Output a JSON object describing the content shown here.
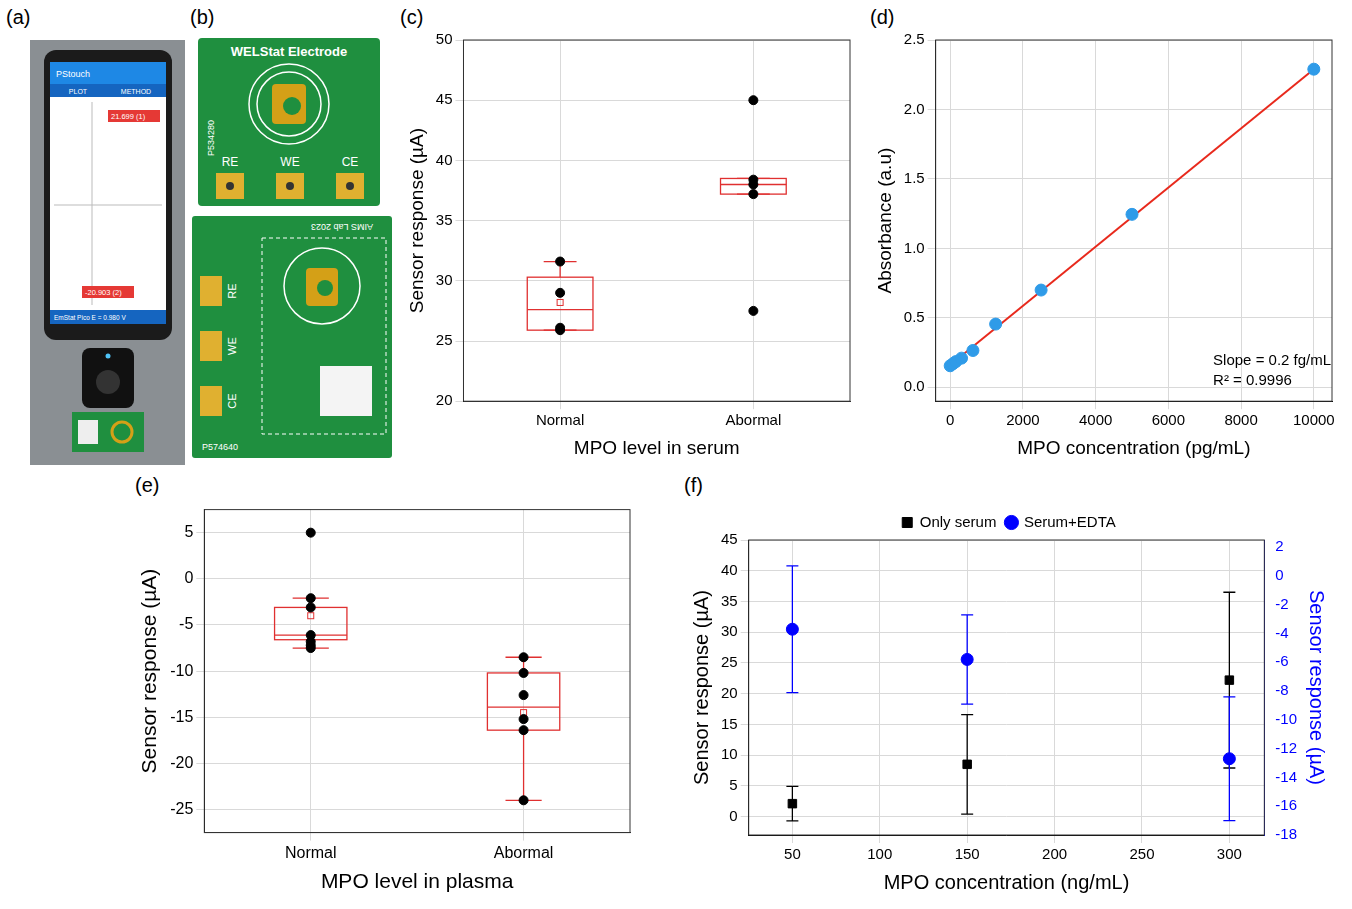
{
  "photos": [
    {
      "panel": "(a)",
      "app": "PStouch",
      "tabs": [
        "PLOT",
        "METHOD"
      ],
      "peak_labels": [
        "21.699 (1)",
        "-20.903 (2)"
      ],
      "status": "EmStat Pico   E = 0.980 V"
    },
    {
      "panel": "(b)",
      "electrodes": [
        {
          "title": "WELStat Electrode",
          "code": "P534280",
          "pins": [
            "RE",
            "WE",
            "CE"
          ]
        },
        {
          "title": "AIMS Lab 2023",
          "code": "P574640",
          "pins": [
            "RE",
            "WE",
            "CE"
          ]
        }
      ]
    }
  ],
  "chart_data": [
    {
      "panel": "(c)",
      "type": "box",
      "categories": [
        "Normal",
        "Abormal"
      ],
      "x_label": "MPO level in serum",
      "y_label": "Sensor response (µA)",
      "ylim": [
        20,
        50
      ],
      "yticks": [
        20,
        25,
        30,
        35,
        40,
        45,
        50
      ],
      "grid": true,
      "color": "#e03030",
      "point_color": "#000000",
      "points": [
        [
          31.6,
          29.0,
          26.1,
          25.9
        ],
        [
          45.0,
          38.4,
          38.0,
          37.2,
          27.5
        ]
      ],
      "boxes": [
        {
          "q1": 25.9,
          "median": 27.6,
          "q3": 30.3,
          "whisker_low": 25.9,
          "whisker_high": 31.6,
          "mean": 28.2
        },
        {
          "q1": 37.2,
          "median": 38.0,
          "q3": 38.5,
          "whisker_low": 37.2,
          "whisker_high": 38.5,
          "mean": 37.2
        }
      ]
    },
    {
      "panel": "(d)",
      "type": "scatter",
      "x_label": "MPO concentration (pg/mL)",
      "y_label": "Absorbance (a.u)",
      "xlim": [
        -400,
        10500
      ],
      "xticks": [
        0,
        2000,
        4000,
        6000,
        8000,
        10000
      ],
      "ylim": [
        -0.1,
        2.5
      ],
      "yticks": [
        {
          "value": 0,
          "label": "0.0"
        },
        {
          "value": 0.5,
          "label": "0.5"
        },
        {
          "value": 1,
          "label": "1.0"
        },
        {
          "value": 1.5,
          "label": "1.5"
        },
        {
          "value": 2,
          "label": "2.0"
        },
        {
          "value": 2.5,
          "label": "2.5"
        }
      ],
      "grid": true,
      "annotations": [
        "Slope = 0.2 fg/mL",
        "R² = 0.9996"
      ],
      "series": [
        {
          "type": "scatter",
          "color": "#2f9be8",
          "marker": "circle",
          "x": [
            0,
            78,
            156,
            312,
            625,
            1250,
            2500,
            5000,
            10000
          ],
          "values": [
            0.155,
            0.17,
            0.185,
            0.21,
            0.265,
            0.455,
            0.7,
            1.245,
            2.29
          ]
        },
        {
          "type": "line",
          "color": "#e8291c",
          "line_style": "solid",
          "x": [
            0,
            10000
          ],
          "values": [
            0.16,
            2.29
          ]
        }
      ]
    },
    {
      "panel": "(e)",
      "type": "box",
      "categories": [
        "Normal",
        "Abormal"
      ],
      "x_label": "MPO level in plasma",
      "y_label": "Sensor response (µA)",
      "ylim": [
        -27.5,
        7.5
      ],
      "yticks": [
        -25,
        -20,
        -15,
        -10,
        -5,
        0,
        5
      ],
      "grid": true,
      "color": "#e03030",
      "point_color": "#000000",
      "points": [
        [
          5.0,
          -2.1,
          -3.1,
          -6.1,
          -6.8,
          -7.2,
          -7.5
        ],
        [
          -8.5,
          -10.2,
          -12.6,
          -15.2,
          -16.4,
          -24.0
        ]
      ],
      "boxes": [
        {
          "q1": -6.6,
          "median": -6.1,
          "q3": -3.1,
          "whisker_low": -7.5,
          "whisker_high": -2.1,
          "mean": -4.0
        },
        {
          "q1": -16.4,
          "median": -13.9,
          "q3": -10.2,
          "whisker_low": -24.0,
          "whisker_high": -8.5,
          "mean": -14.5
        }
      ]
    },
    {
      "panel": "(f)",
      "type": "scatter",
      "x_label": "MPO concentration (ng/mL)",
      "y_label": "Sensor response (µA)",
      "y2_label": "Sensor response (µA)",
      "x": [
        50,
        150,
        300
      ],
      "xlim": [
        25,
        320
      ],
      "xticks": [
        50,
        100,
        150,
        200,
        250,
        300
      ],
      "ylim": [
        -3,
        45
      ],
      "yticks": [
        0,
        5,
        10,
        15,
        20,
        25,
        30,
        35,
        40,
        45
      ],
      "y2lim": [
        -18,
        2.5
      ],
      "y2ticks": [
        -18,
        -16,
        -14,
        -12,
        -10,
        -8,
        -6,
        -4,
        -2,
        0,
        2
      ],
      "grid": true,
      "legend": "top",
      "series": [
        {
          "name": "Only serum",
          "color": "#000000",
          "marker": "square",
          "values": [
            2.1,
            8.5,
            22.2
          ],
          "errors": [
            2.8,
            8.1,
            14.3
          ]
        },
        {
          "name": "Serum+EDTA",
          "color": "#0000ff",
          "marker": "circle",
          "axis": "y2",
          "values": [
            -3.7,
            -5.8,
            -12.7
          ],
          "errors": [
            4.4,
            3.1,
            4.3
          ]
        }
      ]
    }
  ]
}
